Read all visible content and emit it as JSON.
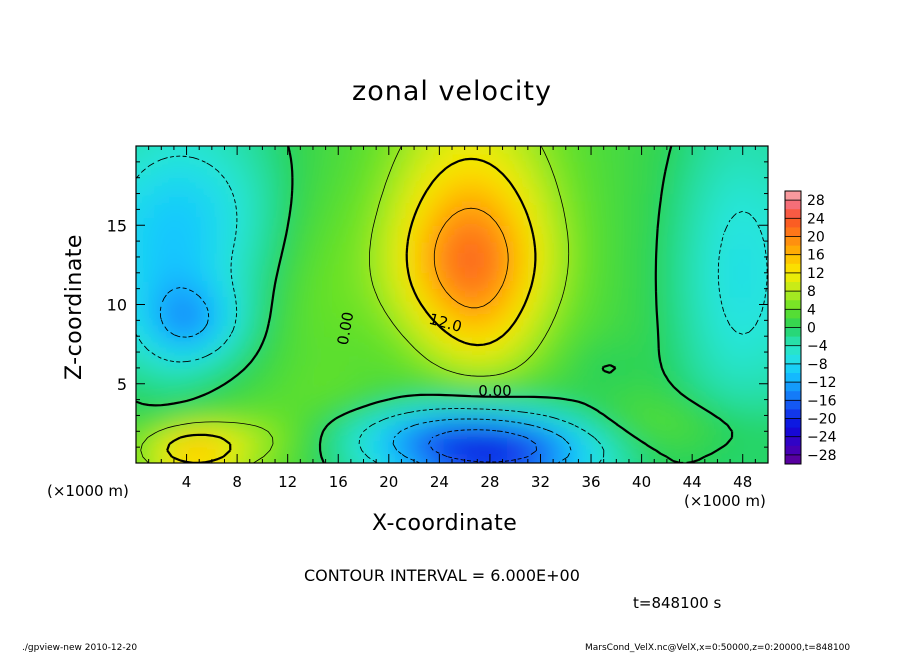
{
  "chart_data": {
    "type": "heatmap",
    "title": "zonal velocity",
    "xlabel": "X-coordinate",
    "ylabel": "Z-coordinate",
    "x_unit": "(×1000 m)",
    "y_unit": "(×1000 m)",
    "xlim": [
      0,
      50
    ],
    "ylim": [
      0,
      20
    ],
    "x_ticks": [
      4,
      8,
      12,
      16,
      20,
      24,
      28,
      32,
      36,
      40,
      44,
      48
    ],
    "y_ticks": [
      5,
      10,
      15
    ],
    "colorbar": {
      "ticks": [
        28,
        24,
        20,
        16,
        12,
        8,
        4,
        0,
        -4,
        -8,
        -12,
        -16,
        -20,
        -24,
        -28
      ],
      "tick_labels": [
        "28",
        "24",
        "20",
        "16",
        "12",
        "8",
        "4",
        "0",
        "−4",
        "−8",
        "−12",
        "−16",
        "−20",
        "−24",
        "−28"
      ],
      "range": [
        -30,
        30
      ]
    },
    "contour_labels": [
      {
        "text": "12.0",
        "x": 24.5,
        "z": 8.9
      },
      {
        "text": "0.00",
        "x": 16.5,
        "z": 8.5
      },
      {
        "text": "0.00",
        "x": 28.4,
        "z": 4.6
      }
    ],
    "field_features": [
      {
        "name": "upper jet maximum",
        "x": 26.5,
        "z": 11.5,
        "value": 19
      },
      {
        "name": "jet core",
        "x": 26,
        "z": 14.5,
        "value": 16
      },
      {
        "name": "near-surface easterly minimum",
        "x": 28.5,
        "z": 1.2,
        "value": -21
      },
      {
        "name": "near-surface westerly maximum",
        "x": 4.5,
        "z": 1.0,
        "value": 14
      },
      {
        "name": "left upper negative patch",
        "x": 4.5,
        "z": 8.7,
        "value": -12
      }
    ],
    "contour_interval": 6.0
  },
  "annotations": {
    "contour_interval": "CONTOUR INTERVAL = 6.000E+00",
    "time": "t=848100 s",
    "footer_left": "./gpview-new   2010-12-20",
    "footer_right": "MarsCond_VelX.nc@VelX,x=0:50000,z=0:20000,t=848100"
  }
}
